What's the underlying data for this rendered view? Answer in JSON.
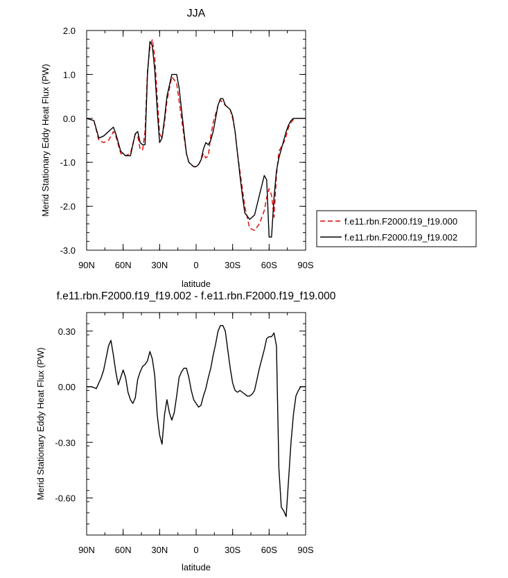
{
  "chart_data": [
    {
      "type": "line",
      "title": "JJA",
      "xlabel": "latitude",
      "ylabel": "Merid Stationary Eddy Heat Flux (PW)",
      "xlim": [
        -90,
        90
      ],
      "ylim": [
        -3.0,
        2.0
      ],
      "x_ticks": [
        -90,
        -60,
        -30,
        0,
        30,
        60,
        90
      ],
      "x_tick_labels": [
        "90N",
        "60N",
        "30N",
        "0",
        "30S",
        "60S",
        "90S"
      ],
      "y_ticks": [
        2.0,
        1.0,
        0.0,
        -1.0,
        -2.0,
        -3.0
      ],
      "y_tick_labels": [
        "2.0",
        "1.0",
        "0.0",
        "-1.0",
        "-2.0",
        "-3.0"
      ],
      "legend": "right",
      "series": [
        {
          "name": "f.e11.rbn.F2000.f19_f19.000",
          "color": "#dd0000",
          "dash": "dashed",
          "x": [
            -90,
            -84,
            -80,
            -76,
            -72,
            -68,
            -66,
            -62,
            -58,
            -54,
            -50,
            -48,
            -46,
            -44,
            -42,
            -40,
            -38,
            -36,
            -34,
            -32,
            -30,
            -28,
            -26,
            -24,
            -20,
            -16,
            -14,
            -12,
            -10,
            -8,
            -6,
            -4,
            -2,
            0,
            2,
            4,
            6,
            8,
            10,
            12,
            14,
            16,
            18,
            20,
            22,
            24,
            26,
            28,
            30,
            32,
            34,
            36,
            38,
            40,
            44,
            48,
            52,
            56,
            58,
            60,
            62,
            64,
            66,
            68,
            70,
            72,
            74,
            76,
            78,
            80,
            82,
            84,
            86,
            88,
            90
          ],
          "y": [
            0.0,
            -0.05,
            -0.5,
            -0.55,
            -0.5,
            -0.3,
            -0.4,
            -0.8,
            -0.85,
            -0.8,
            -0.35,
            -0.4,
            -0.7,
            -0.72,
            -0.3,
            1.1,
            1.6,
            1.8,
            1.4,
            0.5,
            -0.35,
            -0.45,
            -0.1,
            0.4,
            0.95,
            0.8,
            0.4,
            0.0,
            -0.4,
            -0.8,
            -1.0,
            -1.05,
            -1.1,
            -1.1,
            -1.05,
            -0.95,
            -0.8,
            -0.9,
            -0.85,
            -0.4,
            -0.1,
            0.1,
            0.3,
            0.42,
            0.35,
            0.3,
            0.25,
            0.2,
            0.0,
            -0.3,
            -0.8,
            -1.2,
            -1.6,
            -2.0,
            -2.5,
            -2.55,
            -2.4,
            -2.1,
            -1.8,
            -1.6,
            -1.75,
            -2.25,
            -1.3,
            -0.75,
            -0.65,
            -0.55,
            -0.4,
            -0.2,
            -0.1,
            -0.02,
            0.0,
            0.0,
            0.0,
            0.0,
            0.0
          ]
        },
        {
          "name": "f.e11.rbn.F2000.f19_f19.002",
          "color": "#000000",
          "dash": "solid",
          "x": [
            -90,
            -84,
            -80,
            -76,
            -72,
            -68,
            -66,
            -62,
            -58,
            -54,
            -50,
            -48,
            -46,
            -44,
            -42,
            -40,
            -38,
            -36,
            -34,
            -32,
            -30,
            -28,
            -26,
            -24,
            -20,
            -16,
            -14,
            -12,
            -10,
            -8,
            -6,
            -4,
            -2,
            0,
            2,
            4,
            6,
            8,
            10,
            12,
            14,
            16,
            18,
            20,
            22,
            24,
            26,
            28,
            30,
            32,
            34,
            36,
            38,
            40,
            44,
            48,
            52,
            56,
            58,
            60,
            62,
            64,
            66,
            68,
            70,
            72,
            74,
            76,
            78,
            80,
            82,
            84,
            86,
            88,
            90
          ],
          "y": [
            0.0,
            -0.05,
            -0.45,
            -0.4,
            -0.3,
            -0.2,
            -0.35,
            -0.75,
            -0.85,
            -0.85,
            -0.35,
            -0.3,
            -0.55,
            -0.6,
            -0.6,
            1.0,
            1.75,
            1.65,
            1.1,
            0.2,
            -0.55,
            -0.45,
            0.0,
            0.5,
            1.0,
            1.0,
            0.7,
            0.2,
            -0.3,
            -0.8,
            -1.0,
            -1.05,
            -1.1,
            -1.1,
            -1.05,
            -0.95,
            -0.7,
            -0.55,
            -0.6,
            -0.5,
            -0.3,
            0.0,
            0.3,
            0.45,
            0.45,
            0.3,
            0.25,
            0.2,
            0.05,
            -0.3,
            -0.8,
            -1.3,
            -1.75,
            -2.15,
            -2.3,
            -2.2,
            -1.75,
            -1.3,
            -1.4,
            -2.7,
            -2.7,
            -1.8,
            -1.2,
            -0.9,
            -0.7,
            -0.5,
            -0.3,
            -0.15,
            -0.05,
            0.0,
            0.0,
            0.0,
            0.0,
            0.0,
            0.0
          ]
        }
      ]
    },
    {
      "type": "line",
      "title": "f.e11.rbn.F2000.f19_f19.002 - f.e11.rbn.F2000.f19_f19.000",
      "xlabel": "latitude",
      "ylabel": "Merid Stationary Eddy Heat Flux (PW)",
      "xlim": [
        -90,
        90
      ],
      "ylim": [
        -0.8,
        0.4
      ],
      "x_ticks": [
        -90,
        -60,
        -30,
        0,
        30,
        60,
        90
      ],
      "x_tick_labels": [
        "90N",
        "60N",
        "30N",
        "0",
        "30S",
        "60S",
        "90S"
      ],
      "y_ticks": [
        0.3,
        0.0,
        -0.3,
        -0.6
      ],
      "y_tick_labels": [
        "0.30",
        "0.00",
        "-0.30",
        "-0.60"
      ],
      "series": [
        {
          "color": "#000000",
          "dash": "solid",
          "x": [
            -90,
            -86,
            -82,
            -78,
            -76,
            -72,
            -70,
            -68,
            -66,
            -64,
            -62,
            -60,
            -58,
            -56,
            -54,
            -52,
            -50,
            -48,
            -46,
            -44,
            -42,
            -40,
            -38,
            -36,
            -34,
            -32,
            -30,
            -28,
            -26,
            -24,
            -22,
            -20,
            -18,
            -16,
            -14,
            -12,
            -10,
            -8,
            -6,
            -4,
            -2,
            0,
            2,
            4,
            6,
            8,
            10,
            12,
            14,
            16,
            18,
            20,
            22,
            24,
            26,
            28,
            30,
            32,
            34,
            36,
            38,
            40,
            42,
            44,
            46,
            48,
            50,
            52,
            54,
            56,
            58,
            60,
            62,
            64,
            66,
            68,
            70,
            72,
            74,
            76,
            78,
            80,
            82,
            84,
            86,
            88,
            90
          ],
          "y": [
            0.0,
            0.0,
            -0.01,
            0.05,
            0.09,
            0.22,
            0.25,
            0.17,
            0.08,
            0.01,
            0.05,
            0.09,
            0.05,
            -0.03,
            -0.07,
            -0.09,
            -0.06,
            0.04,
            0.08,
            0.11,
            0.12,
            0.14,
            0.19,
            0.15,
            0.06,
            -0.15,
            -0.26,
            -0.31,
            -0.15,
            -0.07,
            -0.14,
            -0.18,
            -0.14,
            -0.05,
            0.05,
            0.08,
            0.1,
            0.1,
            0.05,
            -0.02,
            -0.07,
            -0.09,
            -0.11,
            -0.1,
            -0.05,
            -0.01,
            0.05,
            0.1,
            0.17,
            0.23,
            0.3,
            0.33,
            0.33,
            0.3,
            0.2,
            0.1,
            0.02,
            -0.02,
            -0.03,
            -0.02,
            -0.03,
            -0.04,
            -0.05,
            -0.05,
            -0.04,
            -0.02,
            0.04,
            0.1,
            0.15,
            0.2,
            0.26,
            0.27,
            0.27,
            0.29,
            0.22,
            -0.44,
            -0.65,
            -0.67,
            -0.7,
            -0.5,
            -0.3,
            -0.15,
            -0.05,
            -0.02,
            0.0,
            0.0,
            0.0
          ]
        }
      ]
    }
  ]
}
